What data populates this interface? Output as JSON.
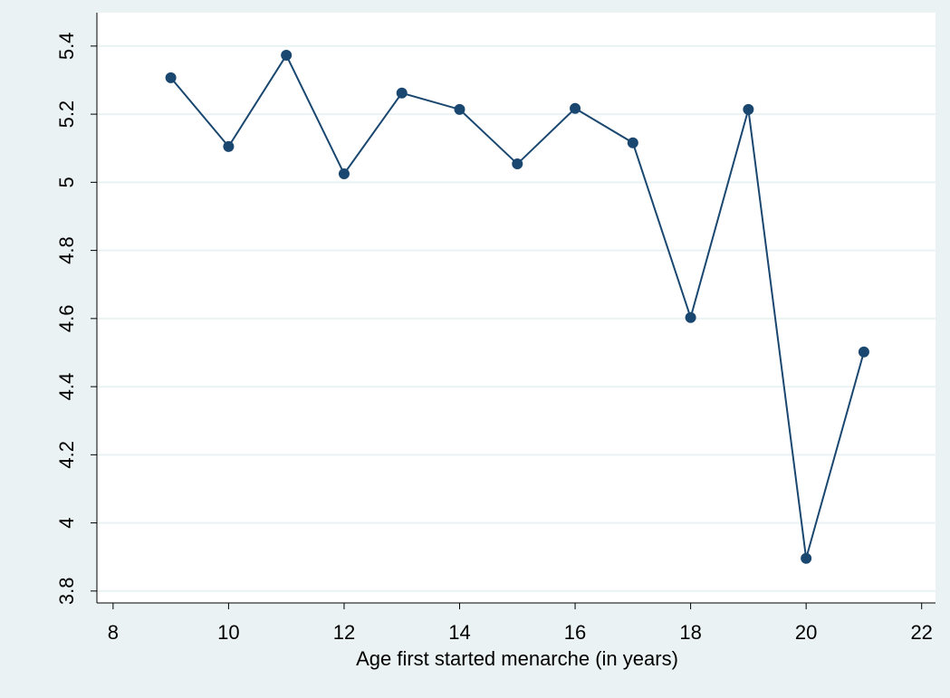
{
  "chart_data": {
    "type": "line",
    "x_label": "Age first started menarche (in years)",
    "x": [
      9,
      10,
      11,
      12,
      13,
      14,
      15,
      16,
      17,
      18,
      19,
      20,
      21
    ],
    "series": [
      {
        "color": "#1a476f",
        "values": [
          5.307,
          5.105,
          5.373,
          5.025,
          5.262,
          5.214,
          5.054,
          5.217,
          5.116,
          4.603,
          5.214,
          3.896,
          4.502
        ]
      }
    ],
    "xlim": [
      7.72,
      22.24
    ],
    "xticks": [
      8,
      10,
      12,
      14,
      16,
      18,
      20,
      22
    ],
    "ylim": [
      3.765,
      5.498
    ],
    "yticks": [
      3.8,
      4,
      4.2,
      4.4,
      4.6,
      4.8,
      5,
      5.2,
      5.4
    ],
    "grid": true
  }
}
